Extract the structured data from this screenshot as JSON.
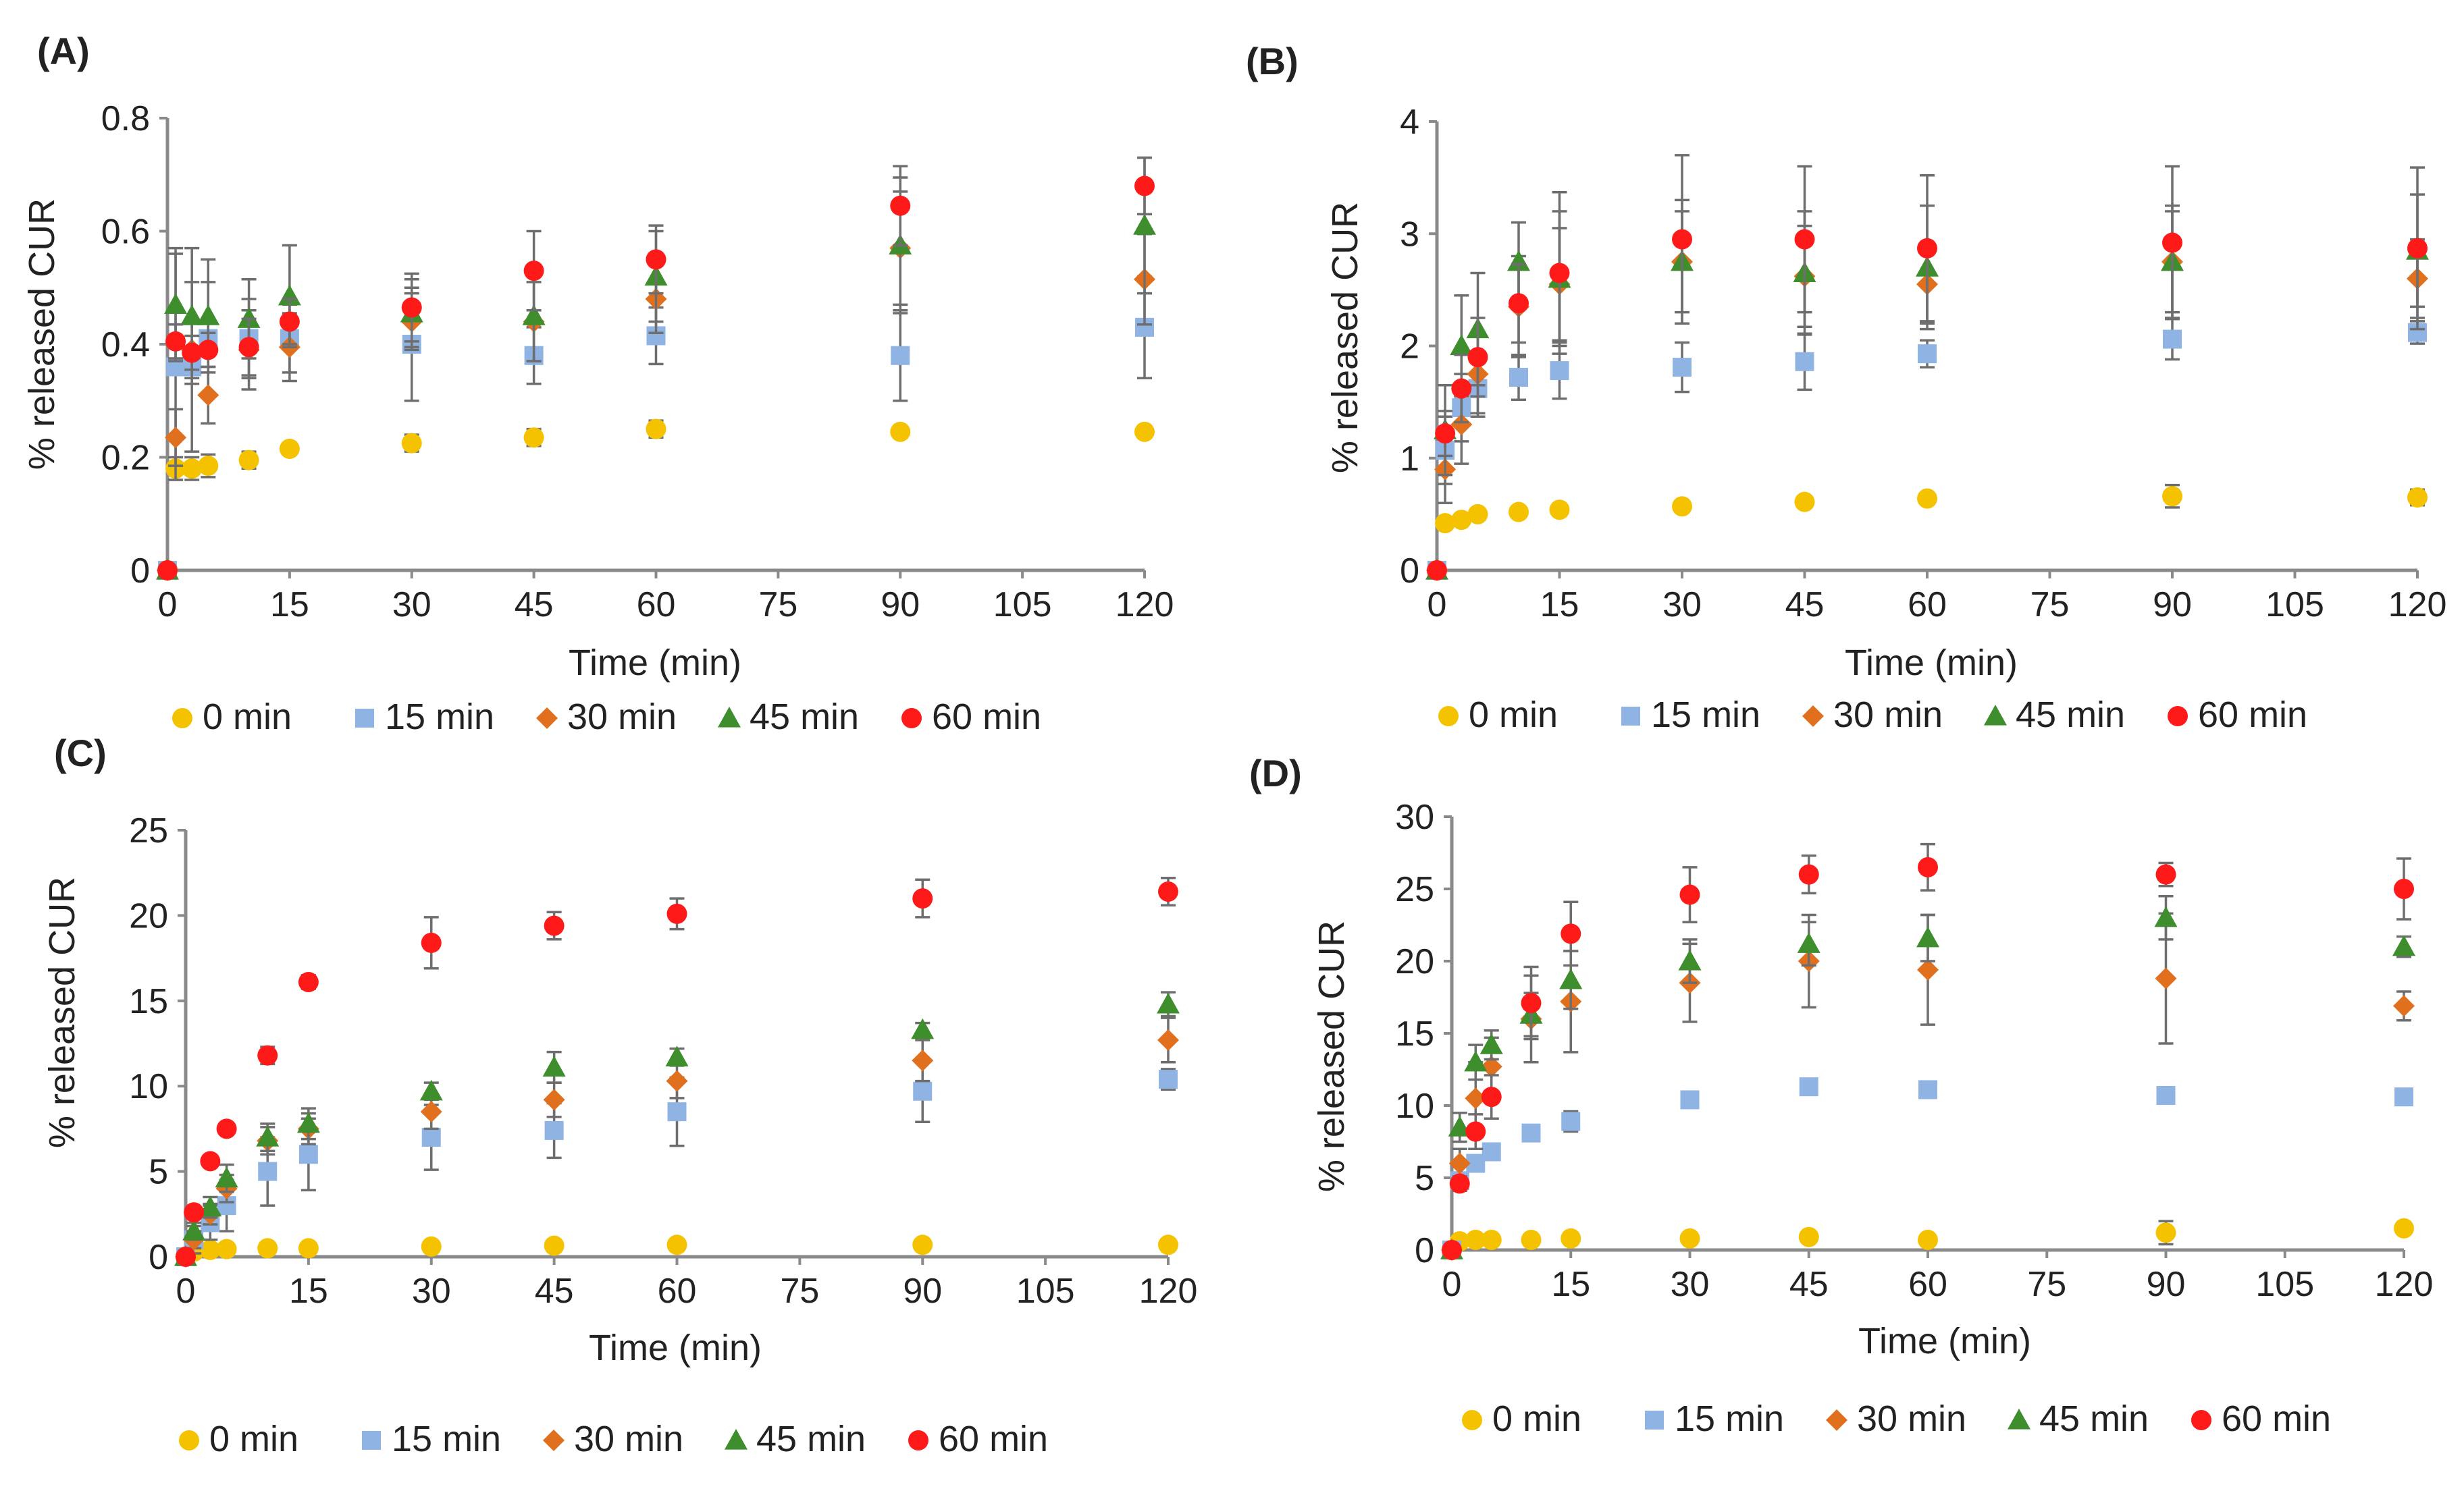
{
  "colors": {
    "0 min": "#f5c200",
    "15 min": "#8fb4e3",
    "30 min": "#e0701e",
    "45 min": "#3e8e2e",
    "60 min": "#ff1a1a"
  },
  "markers": {
    "0 min": "circle",
    "15 min": "square",
    "30 min": "diamond",
    "45 min": "triangle",
    "60 min": "circle"
  },
  "chart_data": [
    {
      "panel": "(A)",
      "type": "scatter",
      "xlabel": "Time (min)",
      "ylabel": "% released CUR",
      "xlim": [
        0,
        120
      ],
      "ylim": [
        0,
        0.8
      ],
      "xticks": [
        0,
        15,
        30,
        45,
        60,
        75,
        90,
        105,
        120
      ],
      "yticks": [
        0,
        0.2,
        0.4,
        0.6,
        0.8
      ],
      "ytick_labels": [
        "0",
        "0.2",
        "0.4",
        "0.6",
        "0.8"
      ],
      "legend": [
        "0 min",
        "15 min",
        "30 min",
        "45 min",
        "60 min"
      ],
      "x": [
        0,
        1,
        3,
        5,
        10,
        15,
        30,
        45,
        60,
        90,
        120
      ],
      "series": [
        {
          "name": "0 min",
          "values": [
            0,
            0.18,
            0.18,
            0.185,
            0.195,
            0.215,
            0.225,
            0.235,
            0.25,
            0.245,
            0.245
          ],
          "errors": [
            0,
            0.02,
            0.02,
            0.02,
            0.015,
            0.01,
            0.015,
            0.015,
            0.015,
            0.005,
            0.005
          ]
        },
        {
          "name": "15 min",
          "values": [
            0,
            0.36,
            0.36,
            0.41,
            0.41,
            0.41,
            0.4,
            0.38,
            0.415,
            0.38,
            0.43
          ],
          "errors": [
            0,
            0.2,
            0.15,
            0.1,
            0.07,
            0.06,
            0.1,
            0.05,
            0.05,
            0.08,
            0.09
          ]
        },
        {
          "name": "30 min",
          "values": [
            0,
            0.235,
            0.39,
            0.31,
            0.39,
            0.395,
            0.44,
            0.44,
            0.48,
            0.57,
            0.515
          ],
          "errors": [
            0,
            0.05,
            0.05,
            0.05,
            0.07,
            0.06,
            0.05,
            0.07,
            0.06,
            0.1,
            0.08
          ]
        },
        {
          "name": "45 min",
          "values": [
            0,
            0.47,
            0.45,
            0.45,
            0.445,
            0.485,
            0.455,
            0.45,
            0.52,
            0.575,
            0.61
          ],
          "errors": [
            0,
            0.1,
            0.12,
            0.1,
            0.07,
            0.09,
            0.06,
            0.08,
            0.08,
            0.12,
            0.12
          ]
        },
        {
          "name": "60 min",
          "values": [
            0,
            0.405,
            0.385,
            0.39,
            0.395,
            0.44,
            0.465,
            0.53,
            0.55,
            0.645,
            0.68
          ],
          "errors": [
            0,
            0.03,
            0.03,
            0.03,
            0.05,
            0.04,
            0.06,
            0.07,
            0.06,
            0.07,
            0.05
          ]
        }
      ]
    },
    {
      "panel": "(B)",
      "type": "scatter",
      "xlabel": "Time (min)",
      "ylabel": "% released CUR",
      "xlim": [
        0,
        120
      ],
      "ylim": [
        0,
        4
      ],
      "xticks": [
        0,
        15,
        30,
        45,
        60,
        75,
        90,
        105,
        120
      ],
      "yticks": [
        0,
        1,
        2,
        3,
        4
      ],
      "ytick_labels": [
        "0",
        "1",
        "2",
        "3",
        "4"
      ],
      "legend": [
        "0 min",
        "15 min",
        "30 min",
        "45 min",
        "60 min"
      ],
      "x": [
        0,
        1,
        3,
        5,
        10,
        15,
        30,
        45,
        60,
        90,
        120
      ],
      "series": [
        {
          "name": "0 min",
          "values": [
            0,
            0.42,
            0.45,
            0.5,
            0.52,
            0.54,
            0.57,
            0.61,
            0.64,
            0.66,
            0.65
          ],
          "errors": [
            0,
            0.03,
            0.03,
            0.03,
            0.03,
            0.03,
            0.04,
            0.05,
            0.05,
            0.1,
            0.07
          ]
        },
        {
          "name": "15 min",
          "values": [
            0,
            1.07,
            1.45,
            1.62,
            1.72,
            1.78,
            1.81,
            1.86,
            1.93,
            2.06,
            2.12
          ],
          "errors": [
            0,
            0.3,
            0.3,
            0.25,
            0.2,
            0.25,
            0.22,
            0.25,
            0.12,
            0.18,
            0.1
          ]
        },
        {
          "name": "30 min",
          "values": [
            0,
            0.9,
            1.3,
            1.75,
            2.35,
            2.55,
            2.75,
            2.62,
            2.55,
            2.75,
            2.6
          ],
          "errors": [
            0,
            0.3,
            0.35,
            0.35,
            0.45,
            0.5,
            0.45,
            0.45,
            0.35,
            0.45,
            0.35
          ]
        },
        {
          "name": "45 min",
          "values": [
            0,
            1.25,
            2.0,
            2.15,
            2.75,
            2.6,
            2.75,
            2.65,
            2.7,
            2.75,
            2.85
          ],
          "errors": [
            0,
            0.4,
            0.45,
            0.5,
            0.35,
            0.6,
            0.55,
            0.55,
            0.55,
            0.5,
            0.5
          ]
        },
        {
          "name": "60 min",
          "values": [
            0,
            1.22,
            1.62,
            1.9,
            2.38,
            2.65,
            2.95,
            2.95,
            2.87,
            2.92,
            2.87
          ],
          "errors": [
            0,
            0.2,
            0.3,
            0.35,
            0.35,
            0.72,
            0.75,
            0.65,
            0.65,
            0.68,
            0.72
          ]
        }
      ]
    },
    {
      "panel": "(C)",
      "type": "scatter",
      "xlabel": "Time (min)",
      "ylabel": "% released CUR",
      "xlim": [
        0,
        120
      ],
      "ylim": [
        0,
        25
      ],
      "xticks": [
        0,
        15,
        30,
        45,
        60,
        75,
        90,
        105,
        120
      ],
      "yticks": [
        0,
        5,
        10,
        15,
        20,
        25
      ],
      "ytick_labels": [
        "0",
        "5",
        "10",
        "15",
        "20",
        "25"
      ],
      "legend": [
        "0 min",
        "15 min",
        "30 min",
        "45 min",
        "60 min"
      ],
      "x": [
        0,
        1,
        3,
        5,
        10,
        15,
        30,
        45,
        60,
        90,
        120
      ],
      "series": [
        {
          "name": "0 min",
          "values": [
            0,
            0.3,
            0.4,
            0.45,
            0.5,
            0.5,
            0.6,
            0.65,
            0.7,
            0.7,
            0.7
          ],
          "errors": [
            0,
            0.1,
            0.1,
            0.1,
            0.1,
            0.1,
            0.1,
            0.1,
            0.1,
            0.1,
            0.1
          ]
        },
        {
          "name": "15 min",
          "values": [
            0,
            1.0,
            2.0,
            3.0,
            5.0,
            6.0,
            7.0,
            7.4,
            8.5,
            9.7,
            10.4
          ],
          "errors": [
            0,
            0.8,
            1.0,
            1.5,
            2.0,
            2.1,
            1.9,
            1.6,
            2.0,
            1.8,
            0.6
          ]
        },
        {
          "name": "30 min",
          "values": [
            0,
            1.0,
            2.5,
            4.0,
            6.8,
            7.5,
            8.5,
            9.2,
            10.3,
            11.5,
            12.7
          ],
          "errors": [
            0,
            0.5,
            0.6,
            0.8,
            0.8,
            0.9,
            1.0,
            1.0,
            1.0,
            1.2,
            1.3
          ]
        },
        {
          "name": "45 min",
          "values": [
            0,
            1.5,
            2.9,
            4.6,
            7.0,
            7.8,
            9.7,
            11.1,
            11.7,
            13.3,
            14.8
          ],
          "errors": [
            0,
            0.5,
            0.6,
            0.8,
            0.8,
            0.9,
            0.5,
            0.9,
            0.5,
            0.4,
            0.7
          ]
        },
        {
          "name": "60 min",
          "values": [
            0,
            2.6,
            5.6,
            7.5,
            11.8,
            16.1,
            18.4,
            19.4,
            20.1,
            21.0,
            21.4
          ],
          "errors": [
            0,
            0.2,
            0.3,
            0.3,
            0.5,
            0.4,
            1.5,
            0.8,
            0.9,
            1.1,
            0.8
          ]
        }
      ]
    },
    {
      "panel": "(D)",
      "type": "scatter",
      "xlabel": "Time (min)",
      "ylabel": "% released CUR",
      "xlim": [
        0,
        120
      ],
      "ylim": [
        0,
        30
      ],
      "xticks": [
        0,
        15,
        30,
        45,
        60,
        75,
        90,
        105,
        120
      ],
      "yticks": [
        0,
        5,
        10,
        15,
        20,
        25,
        30
      ],
      "ytick_labels": [
        "0",
        "5",
        "10",
        "15",
        "20",
        "25",
        "30"
      ],
      "legend": [
        "0 min",
        "15 min",
        "30 min",
        "45 min",
        "60 min"
      ],
      "x": [
        0,
        1,
        3,
        5,
        10,
        15,
        30,
        45,
        60,
        90,
        120
      ],
      "series": [
        {
          "name": "0 min",
          "values": [
            0,
            0.6,
            0.7,
            0.7,
            0.7,
            0.8,
            0.8,
            0.9,
            0.7,
            1.2,
            1.5
          ],
          "errors": [
            0,
            0.2,
            0.2,
            0.2,
            0.2,
            0.2,
            0.3,
            0.3,
            0.3,
            0.8,
            0.4
          ]
        },
        {
          "name": "15 min",
          "values": [
            0,
            4.8,
            6.0,
            6.8,
            8.1,
            8.9,
            10.4,
            11.3,
            11.1,
            10.7,
            10.6
          ],
          "errors": [
            0,
            0.5,
            0.5,
            0.5,
            0.5,
            0.7,
            0.5,
            0.5,
            0.5,
            0.4,
            0.5
          ]
        },
        {
          "name": "30 min",
          "values": [
            0,
            6.0,
            10.5,
            12.7,
            16.0,
            17.2,
            18.5,
            20.0,
            19.4,
            18.8,
            16.9
          ],
          "errors": [
            0,
            1.0,
            2.5,
            2.0,
            3.0,
            3.5,
            2.7,
            3.2,
            3.8,
            4.5,
            1.0
          ]
        },
        {
          "name": "45 min",
          "values": [
            0,
            8.5,
            13.0,
            14.2,
            16.3,
            18.7,
            20.0,
            21.2,
            21.6,
            23.0,
            21.0
          ],
          "errors": [
            0,
            1.0,
            1.2,
            1.0,
            1.5,
            2.0,
            1.5,
            1.5,
            1.6,
            1.5,
            0.7
          ]
        },
        {
          "name": "60 min",
          "values": [
            0,
            4.6,
            8.2,
            10.6,
            17.1,
            21.9,
            24.6,
            26.0,
            26.5,
            26.0,
            25.0
          ],
          "errors": [
            0,
            0.5,
            1.2,
            1.5,
            2.5,
            2.2,
            1.9,
            1.3,
            1.6,
            0.8,
            2.1
          ]
        }
      ]
    }
  ]
}
